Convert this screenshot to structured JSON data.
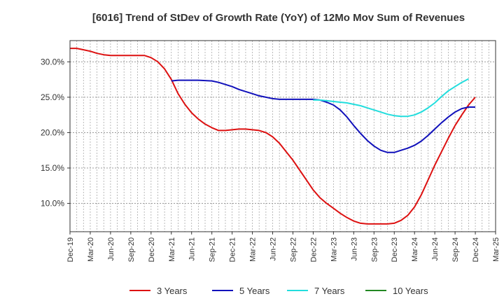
{
  "chart_data": {
    "type": "line",
    "title": "[6016]  Trend of StDev of Growth Rate (YoY) of 12Mo Mov Sum of Revenues",
    "xlabel": "",
    "ylabel": "",
    "ylim": [
      6.0,
      33.0
    ],
    "y_ticks": [
      10,
      15,
      20,
      25,
      30
    ],
    "y_tick_labels": [
      "10.0%",
      "15.0%",
      "20.0%",
      "25.0%",
      "30.0%"
    ],
    "x_range_months": [
      0,
      63
    ],
    "x_tick_labels": [
      "Dec-19",
      "Mar-20",
      "Jun-20",
      "Sep-20",
      "Dec-20",
      "Mar-21",
      "Jun-21",
      "Sep-21",
      "Dec-21",
      "Mar-22",
      "Jun-22",
      "Sep-22",
      "Dec-22",
      "Mar-23",
      "Jun-23",
      "Sep-23",
      "Dec-23",
      "Mar-24",
      "Jun-24",
      "Sep-24",
      "Dec-24",
      "Mar-25"
    ],
    "grid": true,
    "legend_position": "bottom",
    "series": [
      {
        "name": "3 Years",
        "color": "#dd1111",
        "points": [
          [
            0,
            31.9
          ],
          [
            1,
            31.9
          ],
          [
            2,
            31.7
          ],
          [
            3,
            31.5
          ],
          [
            4,
            31.2
          ],
          [
            5,
            31.0
          ],
          [
            6,
            30.9
          ],
          [
            7,
            30.9
          ],
          [
            8,
            30.9
          ],
          [
            9,
            30.9
          ],
          [
            10,
            30.9
          ],
          [
            11,
            30.9
          ],
          [
            12,
            30.6
          ],
          [
            13,
            30.0
          ],
          [
            14,
            29.0
          ],
          [
            15,
            27.5
          ],
          [
            16,
            25.5
          ],
          [
            17,
            24.0
          ],
          [
            18,
            22.8
          ],
          [
            19,
            21.9
          ],
          [
            20,
            21.2
          ],
          [
            21,
            20.7
          ],
          [
            22,
            20.3
          ],
          [
            23,
            20.3
          ],
          [
            24,
            20.4
          ],
          [
            25,
            20.5
          ],
          [
            26,
            20.5
          ],
          [
            27,
            20.4
          ],
          [
            28,
            20.3
          ],
          [
            29,
            20.0
          ],
          [
            30,
            19.4
          ],
          [
            31,
            18.5
          ],
          [
            32,
            17.3
          ],
          [
            33,
            16.1
          ],
          [
            34,
            14.7
          ],
          [
            35,
            13.3
          ],
          [
            36,
            11.9
          ],
          [
            37,
            10.8
          ],
          [
            38,
            10.0
          ],
          [
            39,
            9.3
          ],
          [
            40,
            8.6
          ],
          [
            41,
            8.0
          ],
          [
            42,
            7.5
          ],
          [
            43,
            7.2
          ],
          [
            44,
            7.1
          ],
          [
            45,
            7.1
          ],
          [
            46,
            7.1
          ],
          [
            47,
            7.1
          ],
          [
            48,
            7.2
          ],
          [
            49,
            7.6
          ],
          [
            50,
            8.3
          ],
          [
            51,
            9.5
          ],
          [
            52,
            11.2
          ],
          [
            53,
            13.3
          ],
          [
            54,
            15.4
          ],
          [
            55,
            17.3
          ],
          [
            56,
            19.2
          ],
          [
            57,
            21.0
          ],
          [
            58,
            22.5
          ],
          [
            59,
            23.9
          ],
          [
            60,
            25.0
          ]
        ]
      },
      {
        "name": "5 Years",
        "color": "#1111bb",
        "points": [
          [
            15,
            27.3
          ],
          [
            16,
            27.4
          ],
          [
            17,
            27.4
          ],
          [
            18,
            27.4
          ],
          [
            19,
            27.4
          ],
          [
            20,
            27.35
          ],
          [
            21,
            27.3
          ],
          [
            22,
            27.1
          ],
          [
            23,
            26.8
          ],
          [
            24,
            26.5
          ],
          [
            25,
            26.1
          ],
          [
            26,
            25.8
          ],
          [
            27,
            25.5
          ],
          [
            28,
            25.2
          ],
          [
            29,
            25.0
          ],
          [
            30,
            24.8
          ],
          [
            31,
            24.7
          ],
          [
            32,
            24.7
          ],
          [
            33,
            24.7
          ],
          [
            34,
            24.7
          ],
          [
            35,
            24.7
          ],
          [
            36,
            24.7
          ],
          [
            37,
            24.6
          ],
          [
            38,
            24.3
          ],
          [
            39,
            23.9
          ],
          [
            40,
            23.2
          ],
          [
            41,
            22.2
          ],
          [
            42,
            21.0
          ],
          [
            43,
            19.9
          ],
          [
            44,
            18.9
          ],
          [
            45,
            18.1
          ],
          [
            46,
            17.5
          ],
          [
            47,
            17.2
          ],
          [
            48,
            17.2
          ],
          [
            49,
            17.5
          ],
          [
            50,
            17.8
          ],
          [
            51,
            18.2
          ],
          [
            52,
            18.8
          ],
          [
            53,
            19.6
          ],
          [
            54,
            20.5
          ],
          [
            55,
            21.4
          ],
          [
            56,
            22.2
          ],
          [
            57,
            22.9
          ],
          [
            58,
            23.4
          ],
          [
            59,
            23.6
          ],
          [
            60,
            23.6
          ]
        ]
      },
      {
        "name": "7 Years",
        "color": "#22dddd",
        "points": [
          [
            36,
            24.6
          ],
          [
            37,
            24.6
          ],
          [
            38,
            24.5
          ],
          [
            39,
            24.4
          ],
          [
            40,
            24.3
          ],
          [
            41,
            24.2
          ],
          [
            42,
            24.0
          ],
          [
            43,
            23.8
          ],
          [
            44,
            23.5
          ],
          [
            45,
            23.2
          ],
          [
            46,
            22.9
          ],
          [
            47,
            22.6
          ],
          [
            48,
            22.4
          ],
          [
            49,
            22.3
          ],
          [
            50,
            22.3
          ],
          [
            51,
            22.5
          ],
          [
            52,
            22.9
          ],
          [
            53,
            23.5
          ],
          [
            54,
            24.2
          ],
          [
            55,
            25.1
          ],
          [
            56,
            25.9
          ],
          [
            57,
            26.5
          ],
          [
            58,
            27.1
          ],
          [
            59,
            27.6
          ]
        ]
      },
      {
        "name": "10 Years",
        "color": "#228822",
        "points": []
      }
    ]
  }
}
